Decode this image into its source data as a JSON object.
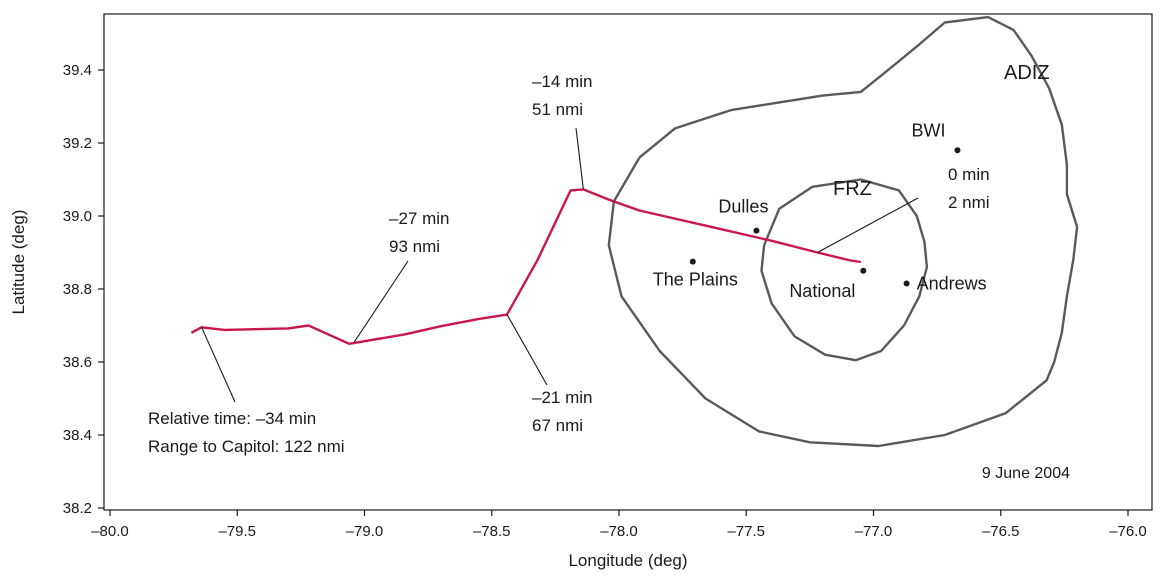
{
  "chart_data": {
    "type": "line",
    "xlabel": "Longitude (deg)",
    "ylabel": "Latitude (deg)",
    "xlim": [
      -80.0,
      -76.0
    ],
    "ylim": [
      38.2,
      39.55
    ],
    "x_ticks": [
      -80.0,
      -79.5,
      -79.0,
      -78.5,
      -78.0,
      -77.5,
      -77.0,
      -76.5,
      -76.0
    ],
    "x_tick_labels": [
      "–80.0",
      "–79.5",
      "–79.0",
      "–78.5",
      "–78.0",
      "–77.5",
      "–77.0",
      "–76.5",
      "–76.0"
    ],
    "y_ticks": [
      38.2,
      38.4,
      38.6,
      38.8,
      39.0,
      39.2,
      39.4
    ],
    "y_tick_labels": [
      "38.2",
      "38.4",
      "38.6",
      "38.8",
      "39.0",
      "39.2",
      "39.4"
    ],
    "grid": false,
    "date_label": "9 June 2004",
    "track": {
      "color": "#c8174a",
      "points": [
        [
          -79.68,
          38.68
        ],
        [
          -79.64,
          38.695
        ],
        [
          -79.55,
          38.688
        ],
        [
          -79.3,
          38.692
        ],
        [
          -79.22,
          38.7
        ],
        [
          -79.06,
          38.65
        ],
        [
          -78.84,
          38.676
        ],
        [
          -78.7,
          38.698
        ],
        [
          -78.55,
          38.718
        ],
        [
          -78.44,
          38.73
        ],
        [
          -78.32,
          38.88
        ],
        [
          -78.19,
          39.07
        ],
        [
          -78.14,
          39.073
        ],
        [
          -78.04,
          39.045
        ],
        [
          -77.92,
          39.015
        ],
        [
          -77.65,
          38.972
        ],
        [
          -77.4,
          38.932
        ],
        [
          -77.22,
          38.9
        ],
        [
          -77.09,
          38.878
        ],
        [
          -77.05,
          38.874
        ]
      ]
    },
    "zone_outline_color": "#5a5a5a",
    "adiz_outline": [
      [
        -77.92,
        39.16
      ],
      [
        -77.78,
        39.24
      ],
      [
        -77.56,
        39.29
      ],
      [
        -77.38,
        39.31
      ],
      [
        -77.2,
        39.33
      ],
      [
        -77.05,
        39.34
      ],
      [
        -76.96,
        39.39
      ],
      [
        -76.82,
        39.47
      ],
      [
        -76.72,
        39.53
      ],
      [
        -76.55,
        39.545
      ],
      [
        -76.45,
        39.51
      ],
      [
        -76.38,
        39.44
      ],
      [
        -76.31,
        39.35
      ],
      [
        -76.26,
        39.25
      ],
      [
        -76.24,
        39.14
      ],
      [
        -76.24,
        39.06
      ],
      [
        -76.2,
        38.97
      ],
      [
        -76.215,
        38.88
      ],
      [
        -76.24,
        38.78
      ],
      [
        -76.26,
        38.68
      ],
      [
        -76.29,
        38.6
      ],
      [
        -76.32,
        38.55
      ],
      [
        -76.48,
        38.46
      ],
      [
        -76.72,
        38.4
      ],
      [
        -76.98,
        38.37
      ],
      [
        -77.25,
        38.38
      ],
      [
        -77.45,
        38.41
      ],
      [
        -77.66,
        38.5
      ],
      [
        -77.84,
        38.63
      ],
      [
        -77.99,
        38.78
      ],
      [
        -78.04,
        38.92
      ],
      [
        -78.02,
        39.04
      ],
      [
        -77.92,
        39.16
      ]
    ],
    "frz_outline": [
      [
        -77.43,
        38.92
      ],
      [
        -77.37,
        39.02
      ],
      [
        -77.24,
        39.08
      ],
      [
        -77.05,
        39.1
      ],
      [
        -76.9,
        39.07
      ],
      [
        -76.83,
        39.0
      ],
      [
        -76.8,
        38.93
      ],
      [
        -76.79,
        38.86
      ],
      [
        -76.82,
        38.78
      ],
      [
        -76.88,
        38.7
      ],
      [
        -76.97,
        38.63
      ],
      [
        -77.07,
        38.605
      ],
      [
        -77.19,
        38.62
      ],
      [
        -77.31,
        38.67
      ],
      [
        -77.4,
        38.76
      ],
      [
        -77.44,
        38.85
      ],
      [
        -77.43,
        38.92
      ]
    ],
    "places": [
      {
        "label": "Dulles",
        "lon": -77.46,
        "lat": 38.96
      },
      {
        "label": "The Plains",
        "lon": -77.71,
        "lat": 38.875
      },
      {
        "label": "National",
        "lon": -77.04,
        "lat": 38.85
      },
      {
        "label": "Andrews",
        "lon": -76.87,
        "lat": 38.815
      },
      {
        "label": "BWI",
        "lon": -76.67,
        "lat": 39.18
      }
    ],
    "zone_labels": [
      {
        "label": "ADIZ"
      },
      {
        "label": "FRZ"
      }
    ],
    "annotations": [
      {
        "lines": [
          "Relative time: –34 min",
          "Range to Capitol: 122 nmi"
        ],
        "lon": -79.64,
        "lat": 38.695
      },
      {
        "lines": [
          "–27 min",
          "93 nmi"
        ],
        "lon": -79.04,
        "lat": 38.655
      },
      {
        "lines": [
          "–21 min",
          "67 nmi"
        ],
        "lon": -78.44,
        "lat": 38.73
      },
      {
        "lines": [
          "–14 min",
          "51 nmi"
        ],
        "lon": -78.14,
        "lat": 39.073
      },
      {
        "lines": [
          "0 min",
          "2 nmi"
        ],
        "lon": -77.22,
        "lat": 38.9
      }
    ]
  }
}
